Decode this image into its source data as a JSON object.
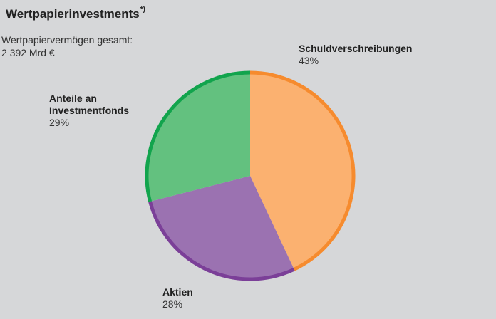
{
  "title": "Wertpapierinvestments",
  "footnote_mark": "*)",
  "total_label": "Wertpapiervermögen gesamt:",
  "total_value": "2 392 Mrd €",
  "chart_data": {
    "type": "pie",
    "slices": [
      {
        "label": "Schuldverschreibungen",
        "pct_text": "43%",
        "value": 43,
        "fill": "#fbb170",
        "edge": "#f68b2e"
      },
      {
        "label": "Aktien",
        "pct_text": "28%",
        "value": 28,
        "fill": "#9b72b1",
        "edge": "#7b3f98"
      },
      {
        "label": "Anteile an Investmentfonds",
        "label_lines": [
          "Anteile an",
          "Investmentfonds"
        ],
        "pct_text": "29%",
        "value": 29,
        "fill": "#63c17f",
        "edge": "#12a44d"
      }
    ]
  }
}
